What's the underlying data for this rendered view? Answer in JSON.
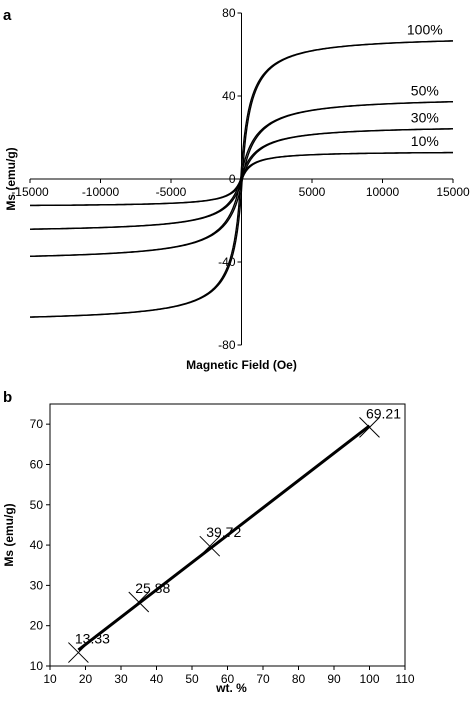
{
  "chart_data": [
    {
      "panel": "a",
      "type": "line",
      "title": "",
      "xlabel": "Magnetic Field (Oe)",
      "ylabel": "Ms (emu/g)",
      "xlim": [
        -15000,
        15000
      ],
      "ylim": [
        -80,
        80
      ],
      "x_ticks": [
        -15000,
        -10000,
        -5000,
        0,
        5000,
        10000,
        15000
      ],
      "y_ticks": [
        -80,
        -40,
        0,
        40,
        80
      ],
      "grid": false,
      "curve_model": "saturating hysteresis loop",
      "series": [
        {
          "name": "100%",
          "ms": 69.21,
          "half_saturation_field": 600,
          "coercivity": 50
        },
        {
          "name": "50%",
          "ms": 39.72,
          "half_saturation_field": 1000,
          "coercivity": 60
        },
        {
          "name": "30%",
          "ms": 25.88,
          "half_saturation_field": 1050,
          "coercivity": 60
        },
        {
          "name": "10%",
          "ms": 13.33,
          "half_saturation_field": 700,
          "coercivity": 50
        }
      ]
    },
    {
      "panel": "b",
      "type": "scatter",
      "title": "",
      "xlabel": "wt. %",
      "ylabel": "Ms (emu/g)",
      "xlim": [
        10,
        110
      ],
      "ylim": [
        10,
        75
      ],
      "x_ticks": [
        10,
        20,
        30,
        40,
        50,
        60,
        70,
        80,
        90,
        100,
        110
      ],
      "y_ticks": [
        10,
        20,
        30,
        40,
        50,
        60,
        70
      ],
      "grid": false,
      "marker": "x",
      "trendline": "linear",
      "points": [
        {
          "x": 18,
          "y": 13.33,
          "label": "13.33"
        },
        {
          "x": 35,
          "y": 25.88,
          "label": "25.88"
        },
        {
          "x": 55,
          "y": 39.72,
          "label": "39.72"
        },
        {
          "x": 100,
          "y": 69.21,
          "label": "69.21"
        }
      ]
    }
  ]
}
